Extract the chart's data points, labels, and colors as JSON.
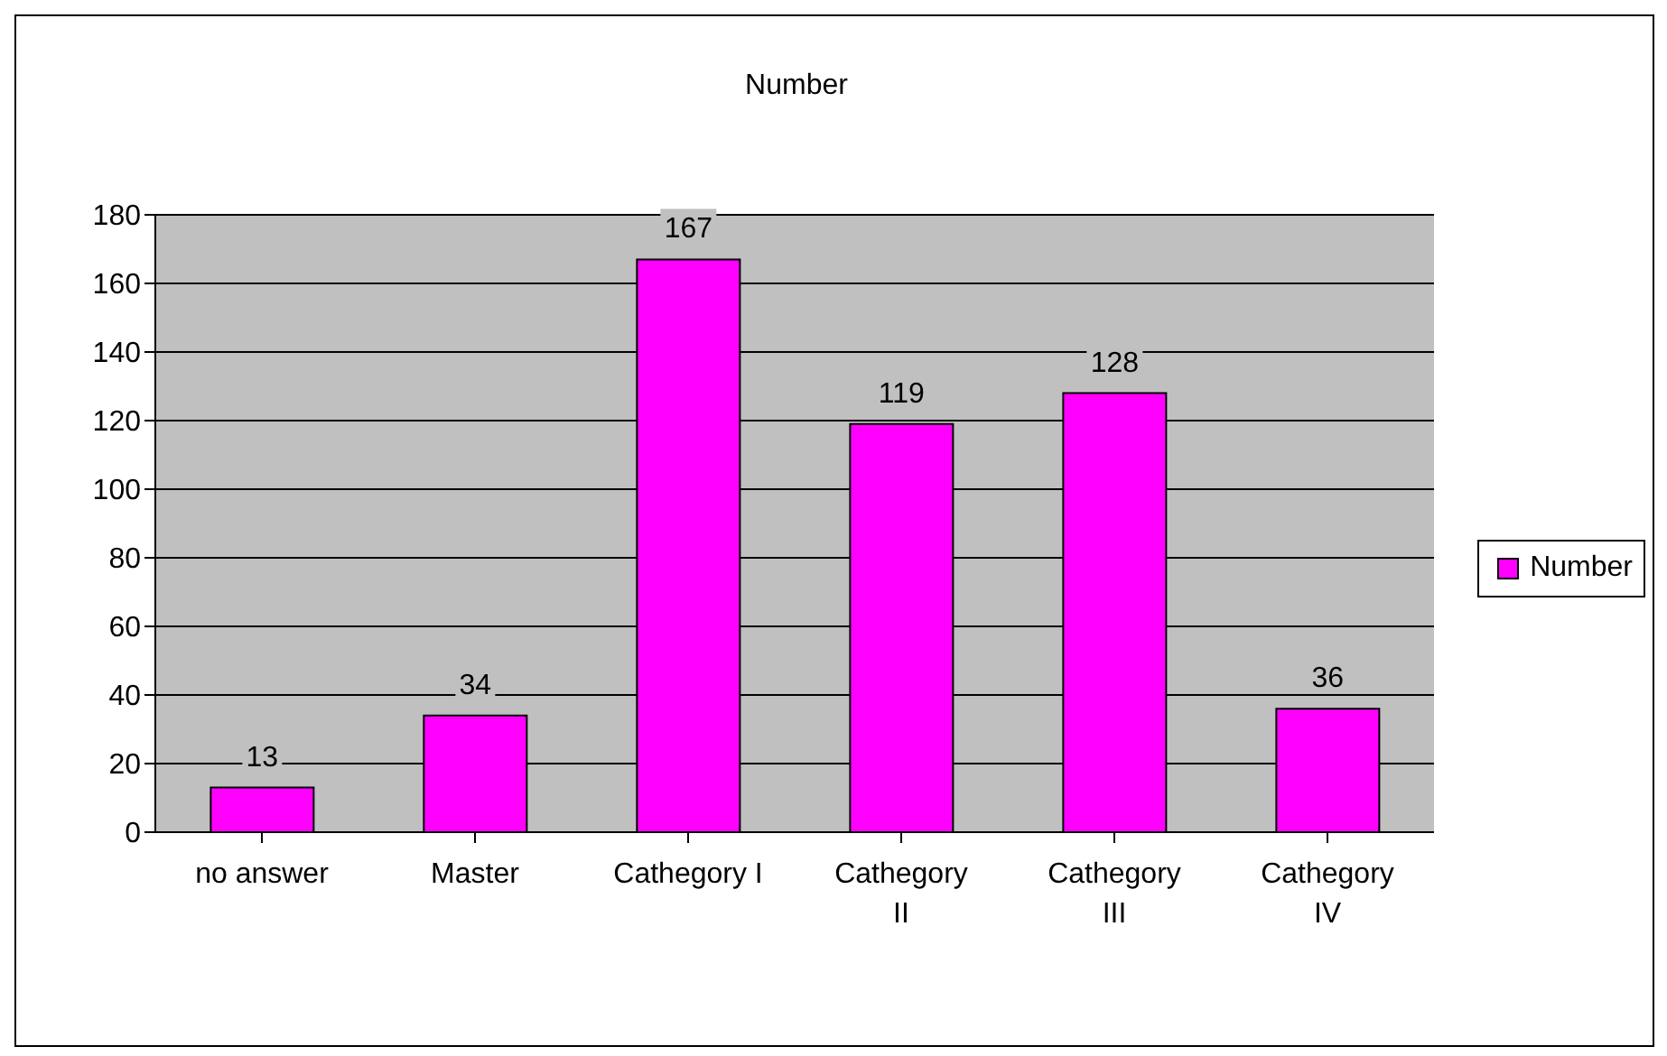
{
  "chart_data": {
    "type": "bar",
    "title": "Number",
    "categories": [
      "no answer",
      "Master",
      "Cathegory I",
      "Cathegory II",
      "Cathegory III",
      "Cathegory IV"
    ],
    "series": [
      {
        "name": "Number",
        "color": "#ff00ff",
        "values": [
          13,
          34,
          167,
          119,
          128,
          36
        ]
      }
    ],
    "ylim": [
      0,
      180
    ],
    "yticks": [
      0,
      20,
      40,
      60,
      80,
      100,
      120,
      140,
      160,
      180
    ],
    "grid": "y",
    "legend": "right",
    "data_labels": true
  }
}
